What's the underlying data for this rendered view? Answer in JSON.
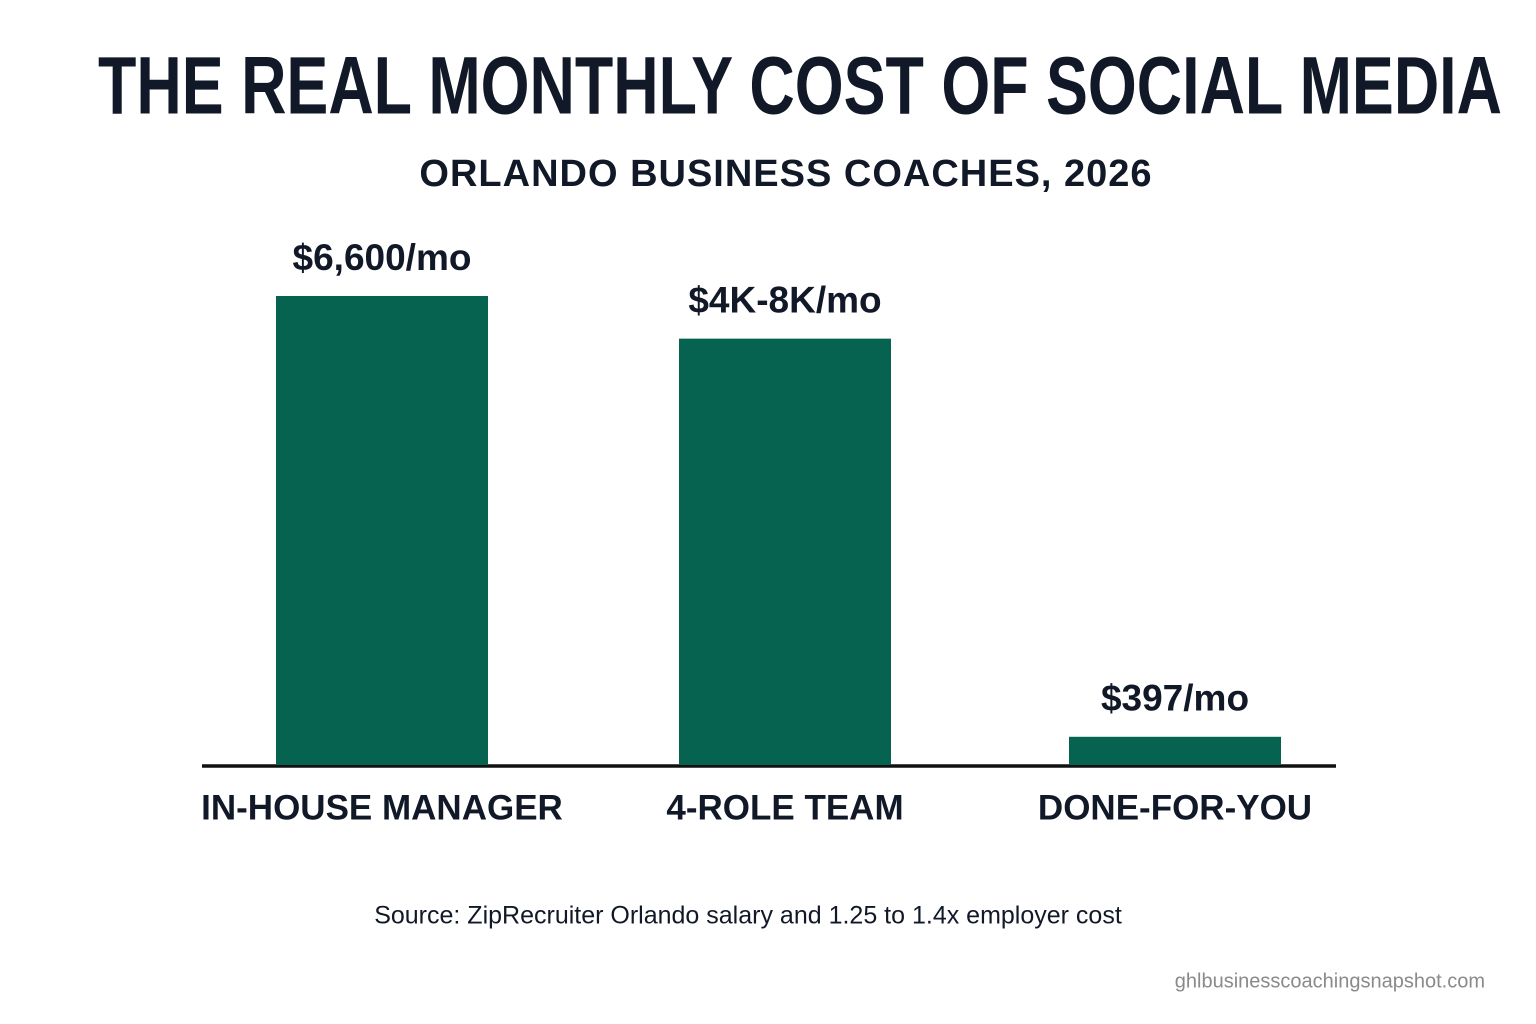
{
  "chart_data": {
    "type": "bar",
    "title": "THE REAL MONTHLY COST OF SOCIAL MEDIA",
    "subtitle": "ORLANDO BUSINESS COACHES, 2026",
    "categories": [
      "IN-HOUSE MANAGER",
      "4-ROLE TEAM",
      "DONE-FOR-YOU"
    ],
    "values": [
      6600,
      6000,
      397
    ],
    "value_labels": [
      "$6,600/mo",
      "$4K-8K/mo",
      "$397/mo"
    ],
    "color": "#06634f",
    "source": "Source: ZipRecruiter Orlando salary and 1.25 to 1.4x employer cost",
    "credit": "ghlbusinesscoachingsnapshot.com"
  }
}
